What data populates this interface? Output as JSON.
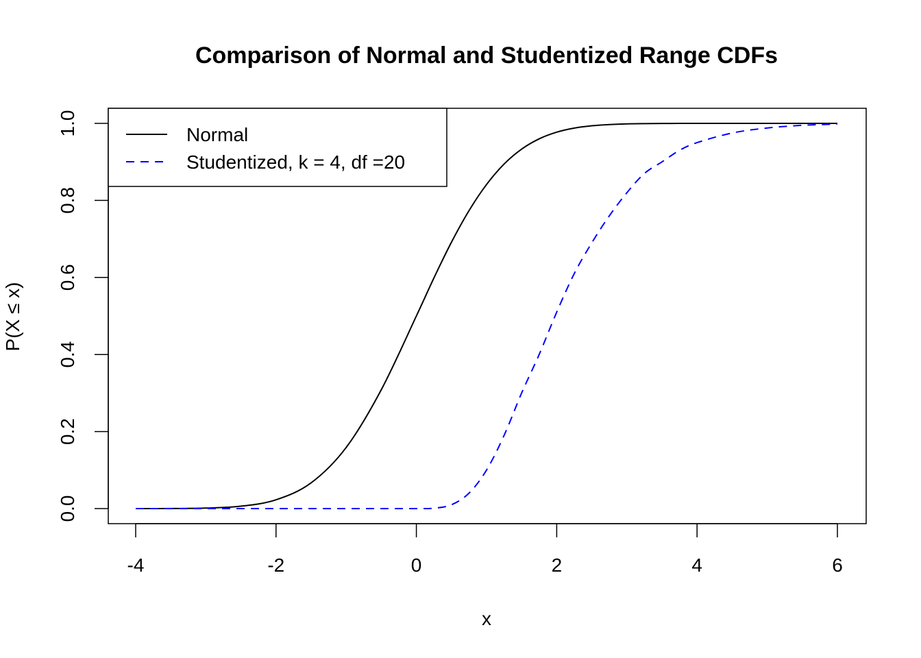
{
  "chart_data": {
    "type": "line",
    "title": "Comparison of Normal and Studentized Range CDFs",
    "xlabel": "x",
    "ylabel": "P(X ≤ x)",
    "xlim": [
      -4,
      6
    ],
    "ylim": [
      0,
      1
    ],
    "x_ticks": [
      -4,
      -2,
      0,
      2,
      4,
      6
    ],
    "y_ticks": [
      0.0,
      0.2,
      0.4,
      0.6,
      0.8,
      1.0
    ],
    "x_tick_labels": [
      "-4",
      "-2",
      "0",
      "2",
      "4",
      "6"
    ],
    "y_tick_labels": [
      "0.0",
      "0.2",
      "0.4",
      "0.6",
      "0.8",
      "1.0"
    ],
    "grid": false,
    "legend_position": "top-left",
    "x": [
      -4,
      -3.5,
      -3,
      -2.5,
      -2,
      -1.5,
      -1,
      -0.5,
      0,
      0.25,
      0.5,
      0.75,
      1,
      1.25,
      1.5,
      1.75,
      2,
      2.25,
      2.5,
      2.75,
      3,
      3.25,
      3.5,
      3.75,
      4,
      4.5,
      5,
      5.5,
      6
    ],
    "series": [
      {
        "name": "Normal",
        "color": "#000000",
        "dash": "solid",
        "values": [
          3e-05,
          0.0002,
          0.0013,
          0.0062,
          0.0228,
          0.0668,
          0.1587,
          0.3085,
          0.5,
          0.5987,
          0.6915,
          0.7734,
          0.8413,
          0.8944,
          0.9332,
          0.9599,
          0.9772,
          0.9878,
          0.9938,
          0.997,
          0.9987,
          0.9994,
          0.9998,
          0.9999,
          1.0,
          1.0,
          1.0,
          1.0,
          1.0
        ]
      },
      {
        "name": "Studentized, k = 4, df =20",
        "color": "#0000ff",
        "dash": "dashed",
        "values": [
          0,
          0,
          0,
          0,
          0,
          0,
          0,
          0,
          0,
          0.001,
          0.01,
          0.04,
          0.1,
          0.19,
          0.3,
          0.4,
          0.51,
          0.61,
          0.69,
          0.76,
          0.82,
          0.87,
          0.9,
          0.93,
          0.95,
          0.975,
          0.988,
          0.995,
          0.998
        ]
      }
    ]
  }
}
